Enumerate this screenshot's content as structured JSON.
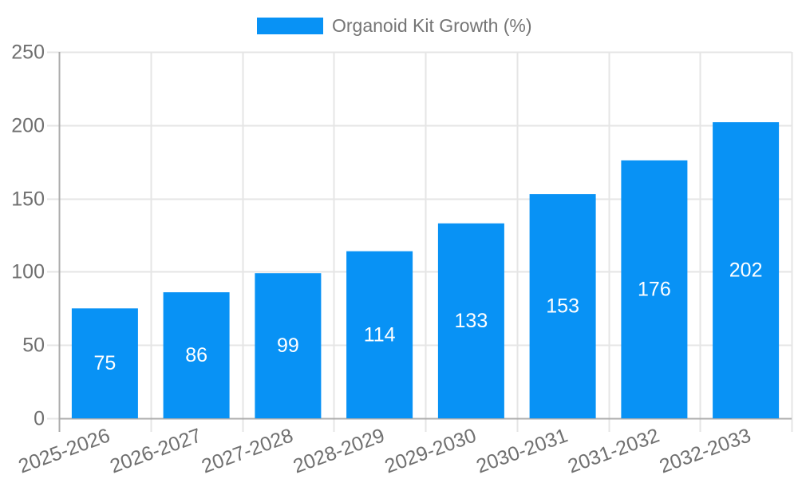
{
  "chart_data": {
    "type": "bar",
    "title": "Organoid Kit Growth (%)",
    "categories": [
      "2025-2026",
      "2026-2027",
      "2027-2028",
      "2028-2029",
      "2029-2030",
      "2030-2031",
      "2031-2032",
      "2032-2033"
    ],
    "values": [
      75,
      86,
      99,
      114,
      133,
      153,
      176,
      202
    ],
    "yticks": [
      0,
      50,
      100,
      150,
      200,
      250
    ],
    "ylim": [
      0,
      250
    ],
    "xlabel": "",
    "ylabel": "",
    "legend_position": "top",
    "grid": true,
    "bar_color": "#0892F5",
    "bar_label_color": "#ffffff",
    "axis_text_color": "#707070",
    "legend_text_color": "#757575",
    "grid_color": "#e5e5e5",
    "axis_line_color": "#acacac"
  }
}
